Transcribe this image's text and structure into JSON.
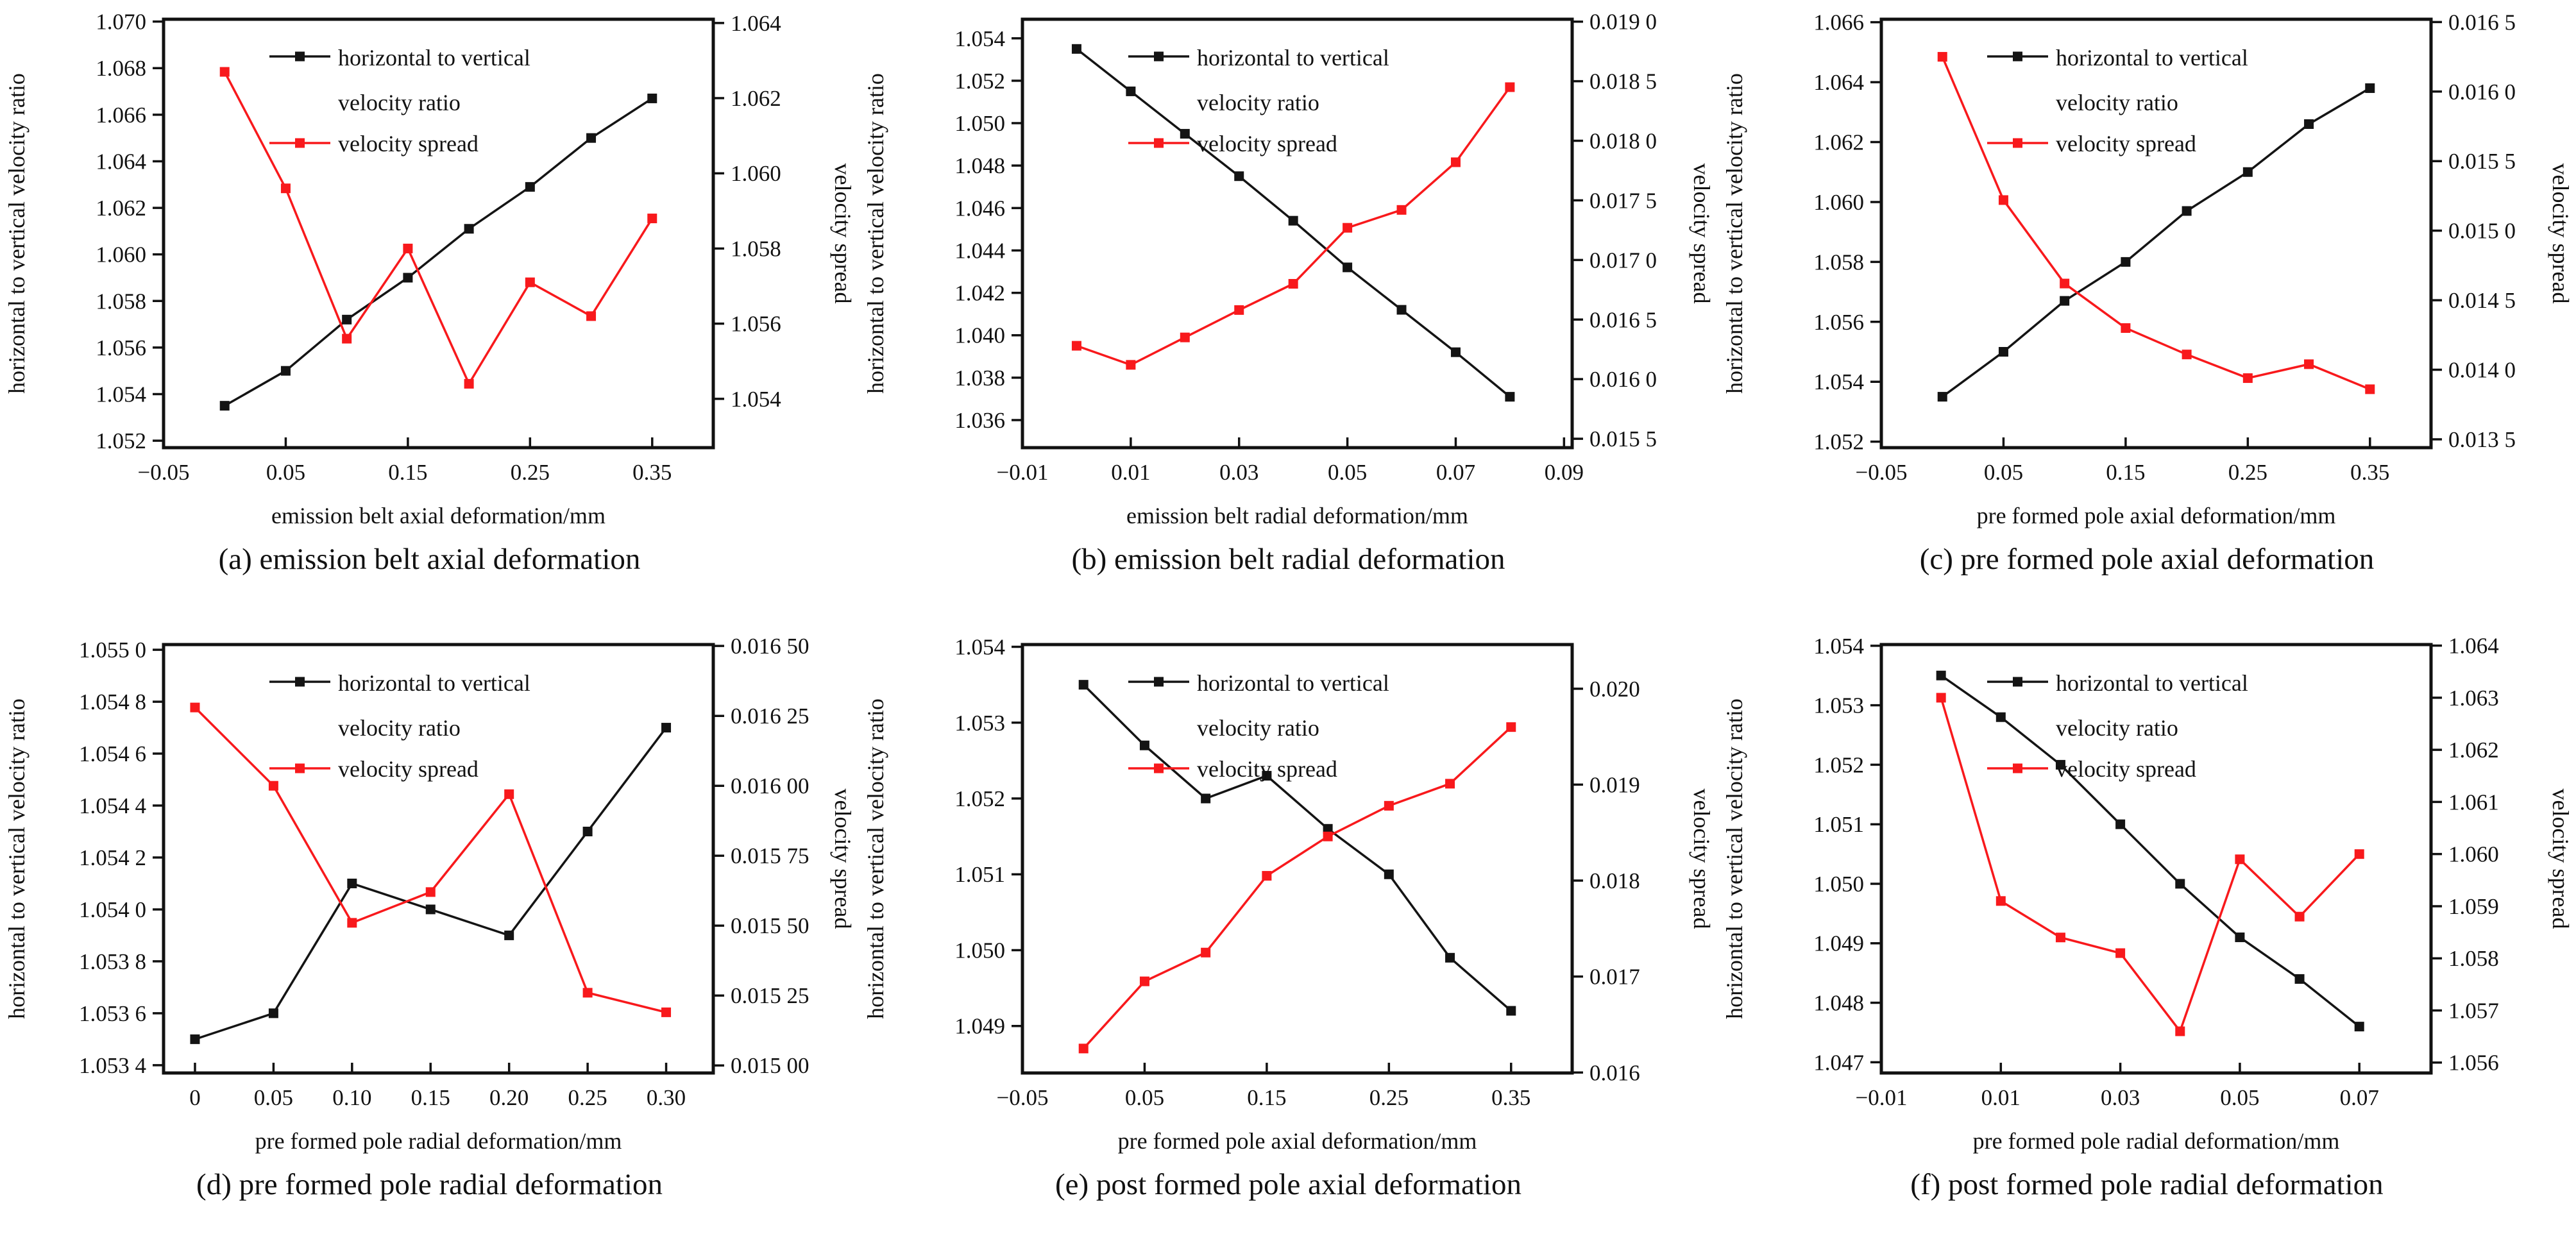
{
  "page": {
    "background": "#ffffff"
  },
  "colors": {
    "black": "#141414",
    "red": "#f8191c",
    "axis": "#111111"
  },
  "chart_data": [
    {
      "id": "a",
      "type": "line",
      "caption": "(a) emission belt axial deformation",
      "xlabel": "emission belt axial deformation/mm",
      "ylabel_left": "horizontal to vertical velocity ratio",
      "ylabel_right": "velocity spread",
      "legend": {
        "entry1_line1": "horizontal to vertical",
        "entry1_line2": "velocity ratio",
        "entry2": "velocity spread"
      },
      "xlim": [
        -0.05,
        0.4
      ],
      "xticks": [
        {
          "v": -0.05,
          "label": "−0.05"
        },
        {
          "v": 0.05,
          "label": "0.05"
        },
        {
          "v": 0.15,
          "label": "0.15"
        },
        {
          "v": 0.25,
          "label": "0.25"
        },
        {
          "v": 0.35,
          "label": "0.35"
        }
      ],
      "left_axis": {
        "lim": [
          1.0517,
          1.0701
        ],
        "ticks": [
          {
            "v": 1.052,
            "label": "1.052"
          },
          {
            "v": 1.054,
            "label": "1.054"
          },
          {
            "v": 1.056,
            "label": "1.056"
          },
          {
            "v": 1.058,
            "label": "1.058"
          },
          {
            "v": 1.06,
            "label": "1.060"
          },
          {
            "v": 1.062,
            "label": "1.062"
          },
          {
            "v": 1.064,
            "label": "1.064"
          },
          {
            "v": 1.066,
            "label": "1.066"
          },
          {
            "v": 1.068,
            "label": "1.068"
          },
          {
            "v": 1.07,
            "label": "1.070"
          }
        ]
      },
      "right_axis": {
        "lim": [
          1.0527,
          1.0641
        ],
        "ticks": [
          {
            "v": 1.054,
            "label": "1.054"
          },
          {
            "v": 1.056,
            "label": "1.056"
          },
          {
            "v": 1.058,
            "label": "1.058"
          },
          {
            "v": 1.06,
            "label": "1.060"
          },
          {
            "v": 1.062,
            "label": "1.062"
          },
          {
            "v": 1.064,
            "label": "1.064"
          }
        ]
      },
      "x": [
        0,
        0.05,
        0.1,
        0.15,
        0.2,
        0.25,
        0.3,
        0.35
      ],
      "series": [
        {
          "name": "horizontal to vertical velocity ratio",
          "axis": "left",
          "color_key": "black",
          "values": [
            1.0535,
            1.055,
            1.0572,
            1.059,
            1.0611,
            1.0629,
            1.065,
            1.0667
          ]
        },
        {
          "name": "velocity spread",
          "axis": "right",
          "color_key": "red",
          "values": [
            1.0627,
            1.0596,
            1.0556,
            1.058,
            1.0544,
            1.0571,
            1.0562,
            1.0588
          ]
        }
      ]
    },
    {
      "id": "b",
      "type": "line",
      "caption": "(b) emission belt radial deformation",
      "xlabel": "emission belt radial deformation/mm",
      "ylabel_left": "horizontal to vertical velocity ratio",
      "ylabel_right": "velocity spread",
      "legend": {
        "entry1_line1": "horizontal to vertical",
        "entry1_line2": "velocity ratio",
        "entry2": "velocity spread"
      },
      "xlim": [
        -0.01,
        0.0915
      ],
      "xticks": [
        {
          "v": -0.01,
          "label": "−0.01"
        },
        {
          "v": 0.01,
          "label": "0.01"
        },
        {
          "v": 0.03,
          "label": "0.03"
        },
        {
          "v": 0.05,
          "label": "0.05"
        },
        {
          "v": 0.07,
          "label": "0.07"
        },
        {
          "v": 0.09,
          "label": "0.09"
        }
      ],
      "left_axis": {
        "lim": [
          1.0347,
          1.0549
        ],
        "ticks": [
          {
            "v": 1.036,
            "label": "1.036"
          },
          {
            "v": 1.038,
            "label": "1.038"
          },
          {
            "v": 1.04,
            "label": "1.040"
          },
          {
            "v": 1.042,
            "label": "1.042"
          },
          {
            "v": 1.044,
            "label": "1.044"
          },
          {
            "v": 1.046,
            "label": "1.046"
          },
          {
            "v": 1.048,
            "label": "1.048"
          },
          {
            "v": 1.05,
            "label": "1.050"
          },
          {
            "v": 1.052,
            "label": "1.052"
          },
          {
            "v": 1.054,
            "label": "1.054"
          }
        ]
      },
      "right_axis": {
        "lim": [
          0.015425,
          0.01902
        ],
        "ticks": [
          {
            "v": 0.0155,
            "label": "0.015 5"
          },
          {
            "v": 0.016,
            "label": "0.016 0"
          },
          {
            "v": 0.0165,
            "label": "0.016 5"
          },
          {
            "v": 0.017,
            "label": "0.017 0"
          },
          {
            "v": 0.0175,
            "label": "0.017 5"
          },
          {
            "v": 0.018,
            "label": "0.018 0"
          },
          {
            "v": 0.0185,
            "label": "0.018 5"
          },
          {
            "v": 0.019,
            "label": "0.019 0"
          }
        ]
      },
      "x": [
        0,
        0.01,
        0.02,
        0.03,
        0.04,
        0.05,
        0.06,
        0.07,
        0.08
      ],
      "series": [
        {
          "name": "horizontal to vertical velocity ratio",
          "axis": "left",
          "color_key": "black",
          "values": [
            1.0535,
            1.0515,
            1.0495,
            1.0475,
            1.0454,
            1.0432,
            1.0412,
            1.0392,
            1.0371
          ]
        },
        {
          "name": "velocity spread",
          "axis": "right",
          "color_key": "red",
          "values": [
            0.01628,
            0.01612,
            0.01635,
            0.01658,
            0.0168,
            0.01727,
            0.01742,
            0.01782,
            0.01845
          ]
        }
      ]
    },
    {
      "id": "c",
      "type": "line",
      "caption": "(c) pre formed pole axial deformation",
      "xlabel": "pre formed pole axial deformation/mm",
      "ylabel_left": "horizontal to vertical velocity ratio",
      "ylabel_right": "velocity spread",
      "legend": {
        "entry1_line1": "horizontal to vertical",
        "entry1_line2": "velocity ratio",
        "entry2": "velocity spread"
      },
      "xlim": [
        -0.05,
        0.4
      ],
      "xticks": [
        {
          "v": -0.05,
          "label": "−0.05"
        },
        {
          "v": 0.05,
          "label": "0.05"
        },
        {
          "v": 0.15,
          "label": "0.15"
        },
        {
          "v": 0.25,
          "label": "0.25"
        },
        {
          "v": 0.35,
          "label": "0.35"
        }
      ],
      "left_axis": {
        "lim": [
          1.0518,
          1.0661
        ],
        "ticks": [
          {
            "v": 1.052,
            "label": "1.052"
          },
          {
            "v": 1.054,
            "label": "1.054"
          },
          {
            "v": 1.056,
            "label": "1.056"
          },
          {
            "v": 1.058,
            "label": "1.058"
          },
          {
            "v": 1.06,
            "label": "1.060"
          },
          {
            "v": 1.062,
            "label": "1.062"
          },
          {
            "v": 1.064,
            "label": "1.064"
          },
          {
            "v": 1.066,
            "label": "1.066"
          }
        ]
      },
      "right_axis": {
        "lim": [
          0.01344,
          0.01652
        ],
        "ticks": [
          {
            "v": 0.0135,
            "label": "0.013 5"
          },
          {
            "v": 0.014,
            "label": "0.014 0"
          },
          {
            "v": 0.0145,
            "label": "0.014 5"
          },
          {
            "v": 0.015,
            "label": "0.015 0"
          },
          {
            "v": 0.0155,
            "label": "0.015 5"
          },
          {
            "v": 0.016,
            "label": "0.016 0"
          },
          {
            "v": 0.0165,
            "label": "0.016 5"
          }
        ]
      },
      "x": [
        0,
        0.05,
        0.1,
        0.15,
        0.2,
        0.25,
        0.3,
        0.35
      ],
      "series": [
        {
          "name": "horizontal to vertical velocity ratio",
          "axis": "left",
          "color_key": "black",
          "values": [
            1.0535,
            1.055,
            1.0567,
            1.058,
            1.0597,
            1.061,
            1.0626,
            1.0638
          ]
        },
        {
          "name": "velocity spread",
          "axis": "right",
          "color_key": "red",
          "values": [
            0.01625,
            0.01522,
            0.01462,
            0.0143,
            0.01411,
            0.01394,
            0.01404,
            0.01386
          ]
        }
      ]
    },
    {
      "id": "d",
      "type": "line",
      "caption": "(d) pre formed pole radial deformation",
      "xlabel": "pre formed pole radial deformation/mm",
      "ylabel_left": "horizontal to vertical velocity ratio",
      "ylabel_right": "velocity spread",
      "legend": {
        "entry1_line1": "horizontal to vertical",
        "entry1_line2": "velocity ratio",
        "entry2": "velocity spread"
      },
      "xlim": [
        -0.02,
        0.33
      ],
      "xticks": [
        {
          "v": 0,
          "label": "0"
        },
        {
          "v": 0.05,
          "label": "0.05"
        },
        {
          "v": 0.1,
          "label": "0.10"
        },
        {
          "v": 0.15,
          "label": "0.15"
        },
        {
          "v": 0.2,
          "label": "0.20"
        },
        {
          "v": 0.25,
          "label": "0.25"
        },
        {
          "v": 0.3,
          "label": "0.30"
        }
      ],
      "left_axis": {
        "lim": [
          1.05337,
          1.05502
        ],
        "ticks": [
          {
            "v": 1.0534,
            "label": "1.053 4"
          },
          {
            "v": 1.0536,
            "label": "1.053 6"
          },
          {
            "v": 1.0538,
            "label": "1.053 8"
          },
          {
            "v": 1.054,
            "label": "1.054 0"
          },
          {
            "v": 1.0542,
            "label": "1.054 2"
          },
          {
            "v": 1.0544,
            "label": "1.054 4"
          },
          {
            "v": 1.0546,
            "label": "1.054 6"
          },
          {
            "v": 1.0548,
            "label": "1.054 8"
          },
          {
            "v": 1.055,
            "label": "1.055 0"
          }
        ]
      },
      "right_axis": {
        "lim": [
          0.014973,
          0.016505
        ],
        "ticks": [
          {
            "v": 0.015,
            "label": "0.015 00"
          },
          {
            "v": 0.01525,
            "label": "0.015 25"
          },
          {
            "v": 0.0155,
            "label": "0.015 50"
          },
          {
            "v": 0.01575,
            "label": "0.015 75"
          },
          {
            "v": 0.016,
            "label": "0.016 00"
          },
          {
            "v": 0.01625,
            "label": "0.016 25"
          },
          {
            "v": 0.0165,
            "label": "0.016 50"
          }
        ]
      },
      "x": [
        0,
        0.05,
        0.1,
        0.15,
        0.2,
        0.25,
        0.3
      ],
      "series": [
        {
          "name": "horizontal to vertical velocity ratio",
          "axis": "left",
          "color_key": "black",
          "values": [
            1.0535,
            1.0536,
            1.0541,
            1.054,
            1.0539,
            1.0543,
            1.0547
          ]
        },
        {
          "name": "velocity spread",
          "axis": "right",
          "color_key": "red",
          "values": [
            0.01628,
            0.016,
            0.01551,
            0.01562,
            0.01597,
            0.01526,
            0.01519
          ]
        }
      ]
    },
    {
      "id": "e",
      "type": "line",
      "caption": "(e) post formed pole axial deformation",
      "xlabel": "pre formed pole axial deformation/mm",
      "ylabel_left": "horizontal to vertical velocity ratio",
      "ylabel_right": "velocity spread",
      "legend": {
        "entry1_line1": "horizontal to vertical",
        "entry1_line2": "velocity ratio",
        "entry2": "velocity spread"
      },
      "xlim": [
        -0.05,
        0.4
      ],
      "xticks": [
        {
          "v": -0.05,
          "label": "−0.05"
        },
        {
          "v": 0.05,
          "label": "0.05"
        },
        {
          "v": 0.15,
          "label": "0.15"
        },
        {
          "v": 0.25,
          "label": "0.25"
        },
        {
          "v": 0.35,
          "label": "0.35"
        }
      ],
      "left_axis": {
        "lim": [
          1.04838,
          1.05403
        ],
        "ticks": [
          {
            "v": 1.049,
            "label": "1.049"
          },
          {
            "v": 1.05,
            "label": "1.050"
          },
          {
            "v": 1.051,
            "label": "1.051"
          },
          {
            "v": 1.052,
            "label": "1.052"
          },
          {
            "v": 1.053,
            "label": "1.053"
          },
          {
            "v": 1.054,
            "label": "1.054"
          }
        ]
      },
      "right_axis": {
        "lim": [
          0.015995,
          0.02046
        ],
        "ticks": [
          {
            "v": 0.016,
            "label": "0.016"
          },
          {
            "v": 0.017,
            "label": "0.017"
          },
          {
            "v": 0.018,
            "label": "0.018"
          },
          {
            "v": 0.019,
            "label": "0.019"
          },
          {
            "v": 0.02,
            "label": "0.020"
          }
        ]
      },
      "x": [
        0,
        0.05,
        0.1,
        0.15,
        0.2,
        0.25,
        0.3,
        0.35
      ],
      "series": [
        {
          "name": "horizontal to vertical velocity ratio",
          "axis": "left",
          "color_key": "black",
          "values": [
            1.0535,
            1.0527,
            1.052,
            1.0523,
            1.0516,
            1.051,
            1.0499,
            1.0492
          ]
        },
        {
          "name": "velocity spread",
          "axis": "right",
          "color_key": "red",
          "values": [
            0.01625,
            0.01695,
            0.01725,
            0.01805,
            0.01846,
            0.01878,
            0.01901,
            0.0196
          ]
        }
      ]
    },
    {
      "id": "f",
      "type": "line",
      "caption": "(f) post formed pole radial deformation",
      "xlabel": "pre formed pole radial deformation/mm",
      "ylabel_left": "horizontal to vertical velocity ratio",
      "ylabel_right": "velocity spread",
      "legend": {
        "entry1_line1": "horizontal to vertical",
        "entry1_line2": "velocity ratio",
        "entry2": "velocity spread"
      },
      "xlim": [
        -0.01,
        0.082
      ],
      "xticks": [
        {
          "v": -0.01,
          "label": "−0.01"
        },
        {
          "v": 0.01,
          "label": "0.01"
        },
        {
          "v": 0.03,
          "label": "0.03"
        },
        {
          "v": 0.05,
          "label": "0.05"
        },
        {
          "v": 0.07,
          "label": "0.07"
        }
      ],
      "left_axis": {
        "lim": [
          1.04682,
          1.05402
        ],
        "ticks": [
          {
            "v": 1.047,
            "label": "1.047"
          },
          {
            "v": 1.048,
            "label": "1.048"
          },
          {
            "v": 1.049,
            "label": "1.049"
          },
          {
            "v": 1.05,
            "label": "1.050"
          },
          {
            "v": 1.051,
            "label": "1.051"
          },
          {
            "v": 1.052,
            "label": "1.052"
          },
          {
            "v": 1.053,
            "label": "1.053"
          },
          {
            "v": 1.054,
            "label": "1.054"
          }
        ]
      },
      "right_axis": {
        "lim": [
          1.0558,
          1.06402
        ],
        "ticks": [
          {
            "v": 1.056,
            "label": "1.056"
          },
          {
            "v": 1.057,
            "label": "1.057"
          },
          {
            "v": 1.058,
            "label": "1.058"
          },
          {
            "v": 1.059,
            "label": "1.059"
          },
          {
            "v": 1.06,
            "label": "1.060"
          },
          {
            "v": 1.061,
            "label": "1.061"
          },
          {
            "v": 1.062,
            "label": "1.062"
          },
          {
            "v": 1.063,
            "label": "1.063"
          },
          {
            "v": 1.064,
            "label": "1.064"
          }
        ]
      },
      "x": [
        0,
        0.01,
        0.02,
        0.03,
        0.04,
        0.05,
        0.06,
        0.07
      ],
      "series": [
        {
          "name": "horizontal to vertical velocity ratio",
          "axis": "left",
          "color_key": "black",
          "values": [
            1.0535,
            1.0528,
            1.052,
            1.051,
            1.05,
            1.0491,
            1.0484,
            1.0476
          ]
        },
        {
          "name": "velocity spread",
          "axis": "right",
          "color_key": "red",
          "values": [
            1.063,
            1.0591,
            1.0584,
            1.0581,
            1.0566,
            1.0599,
            1.0588,
            1.06
          ]
        }
      ]
    }
  ]
}
